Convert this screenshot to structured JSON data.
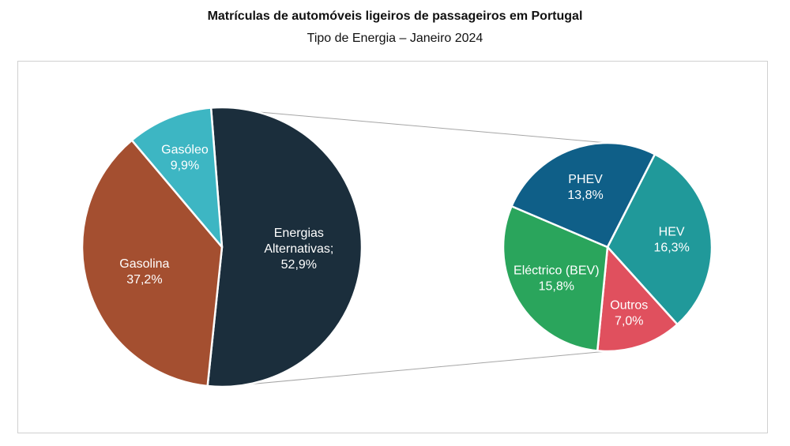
{
  "title": "Matrículas de automóveis ligeiros de passageiros em Portugal",
  "subtitle": "Tipo de Energia – Janeiro 2024",
  "chart_data": [
    {
      "type": "pie",
      "slices": [
        {
          "name": "Energias Alternativas;",
          "label_lines": [
            "Energias",
            "Alternativas;"
          ],
          "value": 52.9,
          "value_label": "52,9%",
          "color": "#1b2e3c"
        },
        {
          "name": "Gasolina",
          "label_lines": [
            "Gasolina"
          ],
          "value": 37.2,
          "value_label": "37,2%",
          "color": "#a44f30"
        },
        {
          "name": "Gasóleo",
          "label_lines": [
            "Gasóleo"
          ],
          "value": 9.9,
          "value_label": "9,9%",
          "color": "#3db6c3"
        }
      ]
    },
    {
      "type": "pie",
      "slices": [
        {
          "name": "HEV",
          "label_lines": [
            "HEV"
          ],
          "value": 16.3,
          "value_label": "16,3%",
          "color": "#20999a"
        },
        {
          "name": "Outros",
          "label_lines": [
            "Outros"
          ],
          "value": 7.0,
          "value_label": "7,0%",
          "color": "#e0505e"
        },
        {
          "name": "Eléctrico (BEV)",
          "label_lines": [
            "Eléctrico (BEV)"
          ],
          "value": 15.8,
          "value_label": "15,8%",
          "color": "#2aa55c"
        },
        {
          "name": "PHEV",
          "label_lines": [
            "PHEV"
          ],
          "value": 13.8,
          "value_label": "13,8%",
          "color": "#0f5f88"
        }
      ]
    }
  ]
}
